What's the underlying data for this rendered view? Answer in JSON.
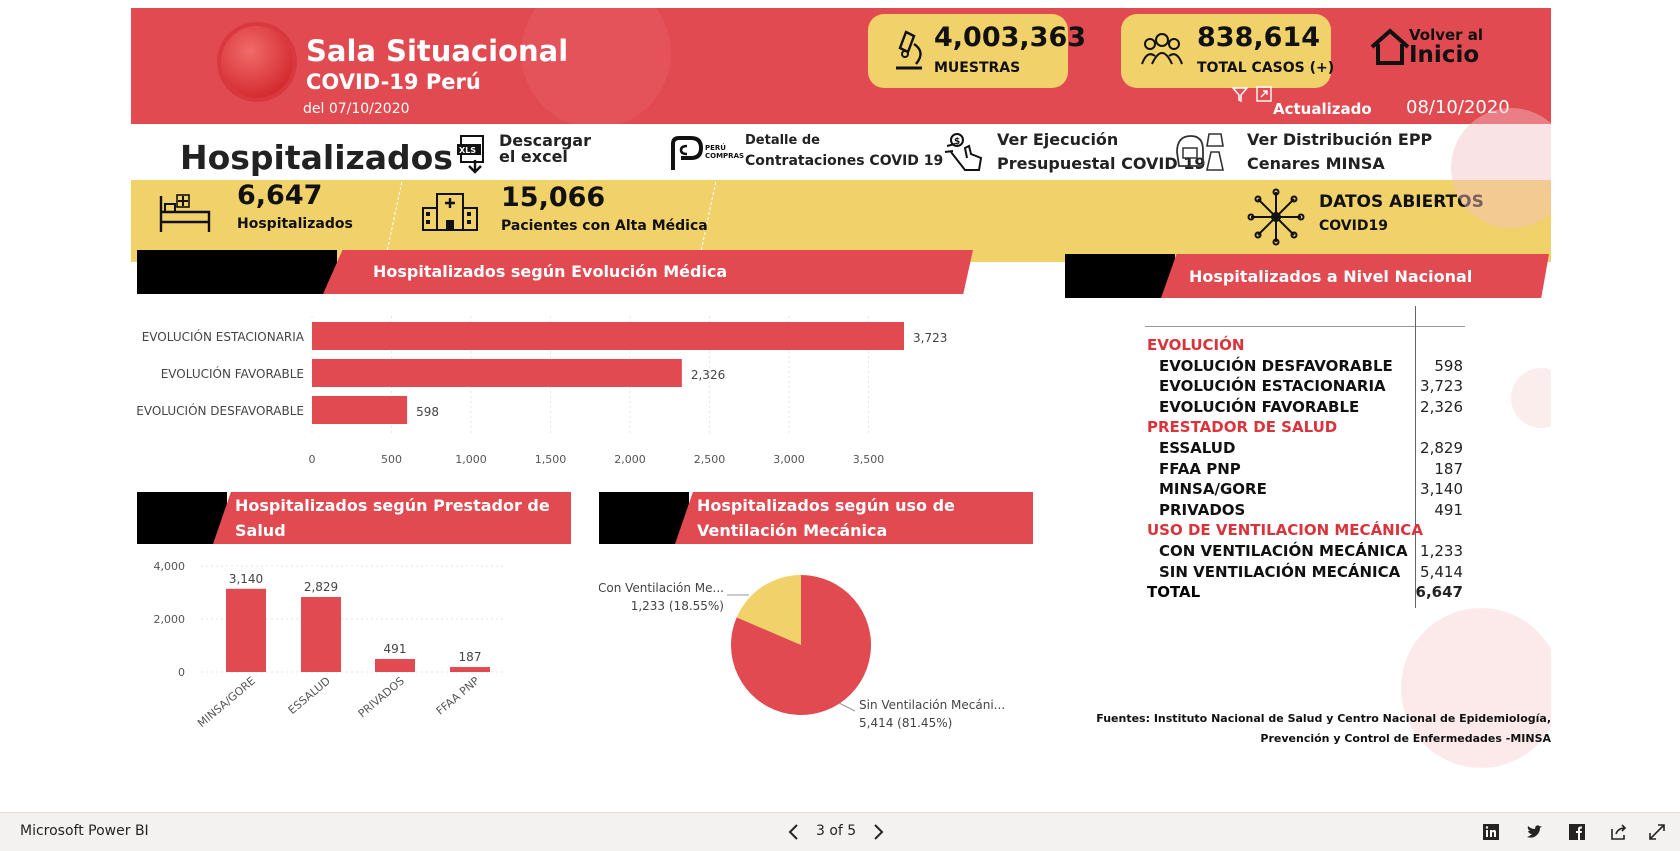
{
  "header": {
    "title": "Sala Situacional",
    "subtitle": "COVID-19 Perú",
    "date": "del 07/10/2020",
    "updated_label": "Actualizado",
    "updated_date": "08/10/2020",
    "home_line1": "Volver al",
    "home_line2": "Inicio"
  },
  "kpis": [
    {
      "value": "4,003,363",
      "label": "MUESTRAS",
      "icon": "microscope-icon"
    },
    {
      "value": "838,614",
      "label": "TOTAL CASOS (+)",
      "icon": "people-icon"
    }
  ],
  "page_title": "Hospitalizados",
  "links": [
    {
      "line1": "Descargar",
      "line2": "el excel",
      "icon": "xls-download-icon"
    },
    {
      "line1": "Detalle  de",
      "line2": "Contrataciones COVID 19",
      "icon": "peru-compras-icon",
      "logo_text": "PERÚ COMPRAS"
    },
    {
      "line1": "Ver Ejecución",
      "line2": "Presupuestal COVID 19",
      "icon": "money-hand-icon"
    },
    {
      "line1": "Ver Distribución EPP",
      "line2": "Cenares MINSA",
      "icon": "ppe-icon"
    }
  ],
  "stats": [
    {
      "value": "6,647",
      "label": "Hospitalizados",
      "icon": "hospital-bed-icon"
    },
    {
      "value": "15,066",
      "label": "Pacientes con Alta Médica",
      "icon": "hospital-icon"
    }
  ],
  "open_data": {
    "line1": "DATOS ABIERTOS",
    "line2": "COVID19",
    "icon": "network-icon"
  },
  "colors": {
    "red": "#e04a50",
    "yellow": "#f0d16a",
    "black": "#000000"
  },
  "panels": {
    "evolucion": "Hospitalizados según Evolución Médica",
    "prestador_l1": "Hospitalizados según Prestador de",
    "prestador_l2": "Salud",
    "ventilacion_l1": "Hospitalizados según uso de",
    "ventilacion_l2": "Ventilación Mecánica",
    "nacional": "Hospitalizados a Nivel Nacional"
  },
  "chart_data": [
    {
      "type": "bar",
      "orientation": "horizontal",
      "title": "Hospitalizados según Evolución Médica",
      "categories": [
        "EVOLUCIÓN ESTACIONARIA",
        "EVOLUCIÓN FAVORABLE",
        "EVOLUCIÓN DESFAVORABLE"
      ],
      "values": [
        3723,
        2326,
        598
      ],
      "value_labels": [
        "3,723",
        "2,326",
        "598"
      ],
      "ticks": [
        0,
        500,
        1000,
        1500,
        2000,
        2500,
        3000,
        3500
      ],
      "tick_labels": [
        "0",
        "500",
        "1,000",
        "1,500",
        "2,000",
        "2,500",
        "3,000",
        "3,500"
      ],
      "xlim": [
        0,
        3723
      ],
      "color": "#e04a50"
    },
    {
      "type": "bar",
      "title": "Hospitalizados según Prestador de Salud",
      "categories": [
        "MINSA/GORE",
        "ESSALUD",
        "PRIVADOS",
        "FFAA PNP"
      ],
      "values": [
        3140,
        2829,
        491,
        187
      ],
      "value_labels": [
        "3,140",
        "2,829",
        "491",
        "187"
      ],
      "ticks": [
        0,
        2000,
        4000
      ],
      "tick_labels": [
        "0",
        "2,000",
        "4,000"
      ],
      "ylim": [
        0,
        4000
      ],
      "color": "#e04a50"
    },
    {
      "type": "pie",
      "title": "Hospitalizados según uso de Ventilación Mecánica",
      "slices": [
        {
          "label": "Con Ventilación Me...",
          "value": 1233,
          "detail": "1,233 (18.55%)",
          "color": "#f0d16a"
        },
        {
          "label": "Sin Ventilación Mecáni...",
          "value": 5414,
          "detail": "5,414 (81.45%)",
          "color": "#e04a50"
        }
      ]
    },
    {
      "type": "table",
      "title": "Hospitalizados a Nivel Nacional",
      "rows": [
        {
          "kind": "header",
          "label": "EVOLUCIÓN",
          "value": ""
        },
        {
          "kind": "item",
          "label": "EVOLUCIÓN DESFAVORABLE",
          "value": "598"
        },
        {
          "kind": "item",
          "label": "EVOLUCIÓN ESTACIONARIA",
          "value": "3,723"
        },
        {
          "kind": "item",
          "label": "EVOLUCIÓN FAVORABLE",
          "value": "2,326"
        },
        {
          "kind": "header",
          "label": "PRESTADOR DE SALUD",
          "value": ""
        },
        {
          "kind": "item",
          "label": "ESSALUD",
          "value": "2,829"
        },
        {
          "kind": "item",
          "label": "FFAA PNP",
          "value": "187"
        },
        {
          "kind": "item",
          "label": "MINSA/GORE",
          "value": "3,140"
        },
        {
          "kind": "item",
          "label": "PRIVADOS",
          "value": "491"
        },
        {
          "kind": "header",
          "label": "USO DE VENTILACION MECÁNICA",
          "value": ""
        },
        {
          "kind": "item",
          "label": "CON VENTILACIÓN MECÁNICA",
          "value": "1,233"
        },
        {
          "kind": "item",
          "label": "SIN VENTILACIÓN MECÁNICA",
          "value": "5,414"
        },
        {
          "kind": "total",
          "label": "TOTAL",
          "value": "6,647"
        }
      ]
    }
  ],
  "source_line1": "Fuentes: Instituto Nacional de Salud y Centro Nacional de Epidemiología,",
  "source_line2": "Prevención y Control de Enfermedades -MINSA",
  "footer": {
    "brand": "Microsoft Power BI",
    "page_indicator": "3 of 5",
    "icons": [
      "linkedin-icon",
      "twitter-icon",
      "facebook-icon",
      "share-icon",
      "fullscreen-icon"
    ]
  }
}
